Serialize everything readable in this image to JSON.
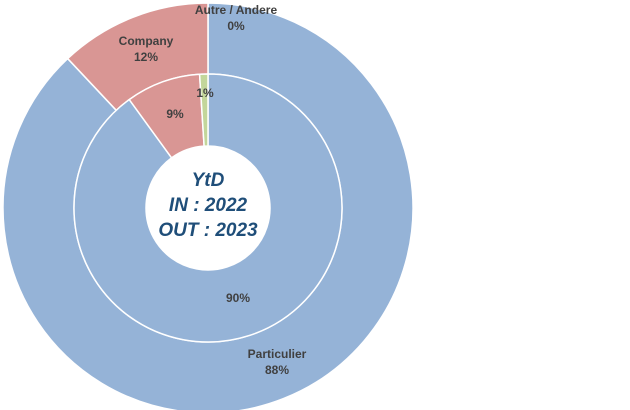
{
  "chart_data": {
    "type": "pie",
    "variant": "nested-donut",
    "center_label": [
      "YtD",
      "IN : 2022",
      "OUT : 2023"
    ],
    "categories": [
      "Particulier",
      "Company",
      "Autre / Andere"
    ],
    "colors": [
      "#95b3d7",
      "#d99694",
      "#c3d69b"
    ],
    "series": [
      {
        "ring": "outer",
        "values": [
          88,
          12,
          0
        ],
        "labels": [
          "88%",
          "12%",
          "0%"
        ]
      },
      {
        "ring": "inner",
        "values": [
          90,
          9,
          1
        ],
        "labels": [
          "90%",
          "9%",
          "1%"
        ]
      }
    ]
  }
}
